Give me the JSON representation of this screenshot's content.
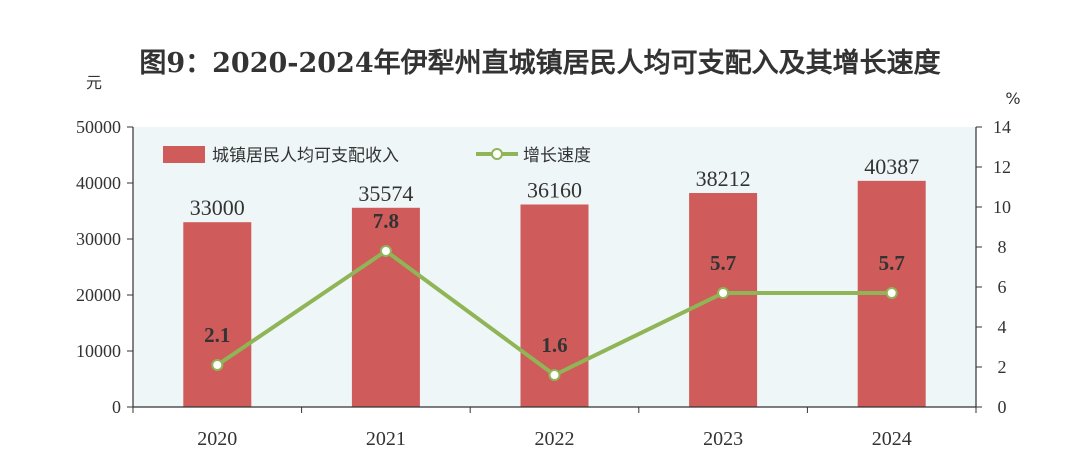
{
  "chart_data": {
    "type": "bar",
    "title": "图9：2020-2024年伊犁州直城镇居民人均可支配入及其增长速度",
    "categories": [
      "2020",
      "2021",
      "2022",
      "2023",
      "2024"
    ],
    "series": [
      {
        "name": "城镇居民人均可支配收入",
        "type": "bar",
        "axis": "left",
        "values": [
          33000,
          35574,
          36160,
          38212,
          40387
        ],
        "color": "#cf5b5b"
      },
      {
        "name": "增长速度",
        "type": "line",
        "axis": "right",
        "values": [
          2.1,
          7.8,
          1.6,
          5.7,
          5.7
        ],
        "color": "#8fb556"
      }
    ],
    "y_left": {
      "unit": "元",
      "range": [
        0,
        50000
      ],
      "ticks": [
        "0",
        "10000",
        "20000",
        "30000",
        "40000",
        "50000"
      ]
    },
    "y_right": {
      "unit": "%",
      "range": [
        0,
        14
      ],
      "ticks": [
        "0",
        "2",
        "4",
        "6",
        "8",
        "10",
        "12",
        "14"
      ]
    },
    "legend_position": "top-left inside plot",
    "plot_background": "#eef6f8",
    "grid": false
  }
}
